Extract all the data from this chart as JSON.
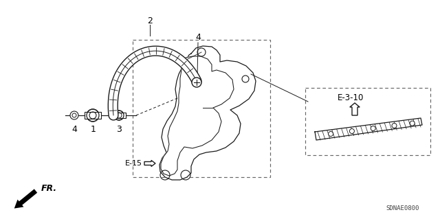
{
  "bg_color": "#ffffff",
  "fig_width": 6.4,
  "fig_height": 3.19,
  "dpi": 100,
  "label_2": "2",
  "label_4a": "4",
  "label_4b": "4",
  "label_1": "1",
  "label_3": "3",
  "label_e15": "E-15",
  "label_e310": "E-3-10",
  "label_fr": "FR.",
  "label_sdnae": "SDNAE0800",
  "line_color": "#1a1a1a",
  "text_color": "#000000",
  "lw_main": 0.9,
  "lw_thin": 0.6,
  "lw_thick": 1.3
}
